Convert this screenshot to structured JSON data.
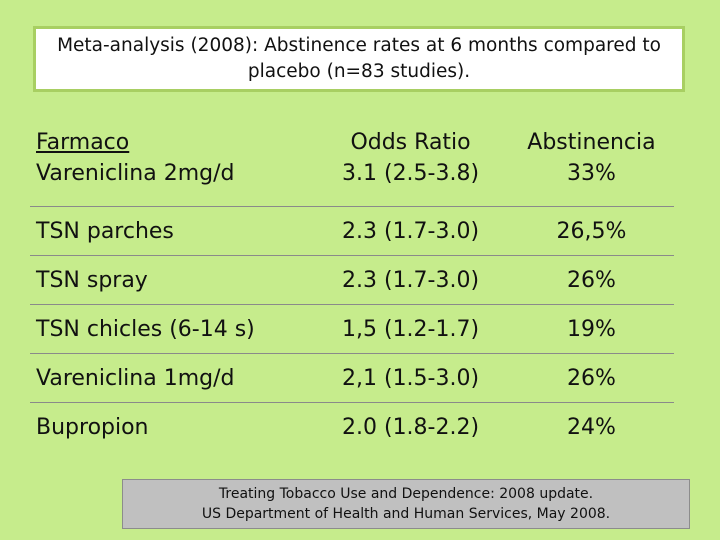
{
  "title": "Meta-analysis (2008): Abstinence rates at 6 months compared to placebo (n=83 studies).",
  "table": {
    "header": {
      "col1_line1": "Farmaco",
      "col1_line2": "Vareniclina 2mg/d",
      "col2_line1": "Odds Ratio",
      "col2_line2": "3.1 (2.5-3.8)",
      "col3_line1": "Abstinencia",
      "col3_line2": "33%"
    },
    "rows": [
      {
        "drug": "TSN parches",
        "odds": "2.3 (1.7-3.0)",
        "abstinence": "26,5%"
      },
      {
        "drug": "TSN spray",
        "odds": "2.3 (1.7-3.0)",
        "abstinence": "26%"
      },
      {
        "drug": "TSN chicles (6-14 s)",
        "odds": "1,5 (1.2-1.7)",
        "abstinence": "19%"
      },
      {
        "drug": "Vareniclina 1mg/d",
        "odds": "2,1 (1.5-3.0)",
        "abstinence": "26%"
      },
      {
        "drug": "Bupropion",
        "odds": "2.0 (1.8-2.2)",
        "abstinence": "24%"
      }
    ]
  },
  "source": {
    "line1": "Treating Tobacco Use and Dependence: 2008 update.",
    "line2": "US Department of Health and Human Services, May 2008."
  },
  "colors": {
    "background": "#c6ec8c",
    "title_border": "#a8cf62",
    "source_background": "#c0c0c0"
  }
}
